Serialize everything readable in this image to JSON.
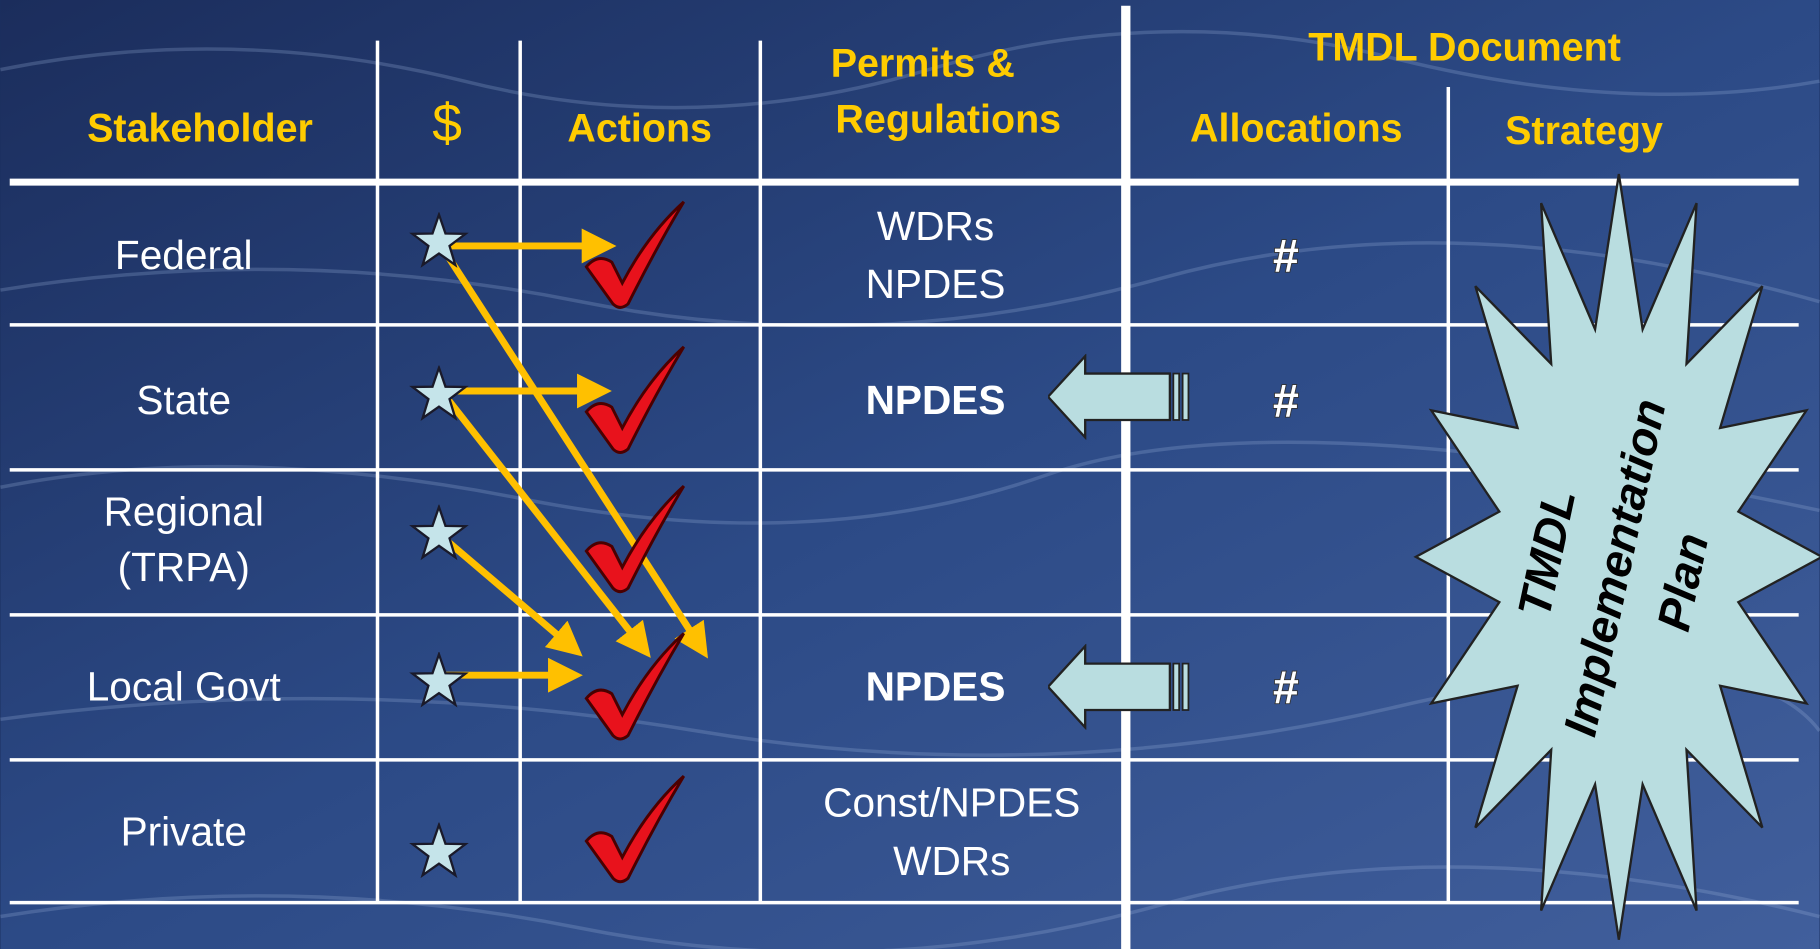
{
  "headers": {
    "stakeholder": "Stakeholder",
    "funding": "$",
    "actions": "Actions",
    "permits": [
      "Permits &",
      "Regulations"
    ],
    "tmdl_document": "TMDL Document",
    "allocations": "Allocations",
    "strategy": "Strategy"
  },
  "rows": [
    {
      "stakeholder": [
        "Federal"
      ],
      "permits": [
        "WDRs",
        "NPDES"
      ],
      "allocation": "#"
    },
    {
      "stakeholder": [
        "State"
      ],
      "permits": [
        "NPDES"
      ],
      "allocation": "#"
    },
    {
      "stakeholder": [
        "Regional",
        "(TRPA)"
      ],
      "permits": []
    },
    {
      "stakeholder": [
        "Local Govt"
      ],
      "permits": [
        "NPDES"
      ],
      "allocation": "#"
    },
    {
      "stakeholder": [
        "Private"
      ],
      "permits": [
        "Const/NPDES",
        "WDRs"
      ]
    }
  ],
  "callout": [
    "TMDL",
    "Implementation",
    "Plan"
  ]
}
